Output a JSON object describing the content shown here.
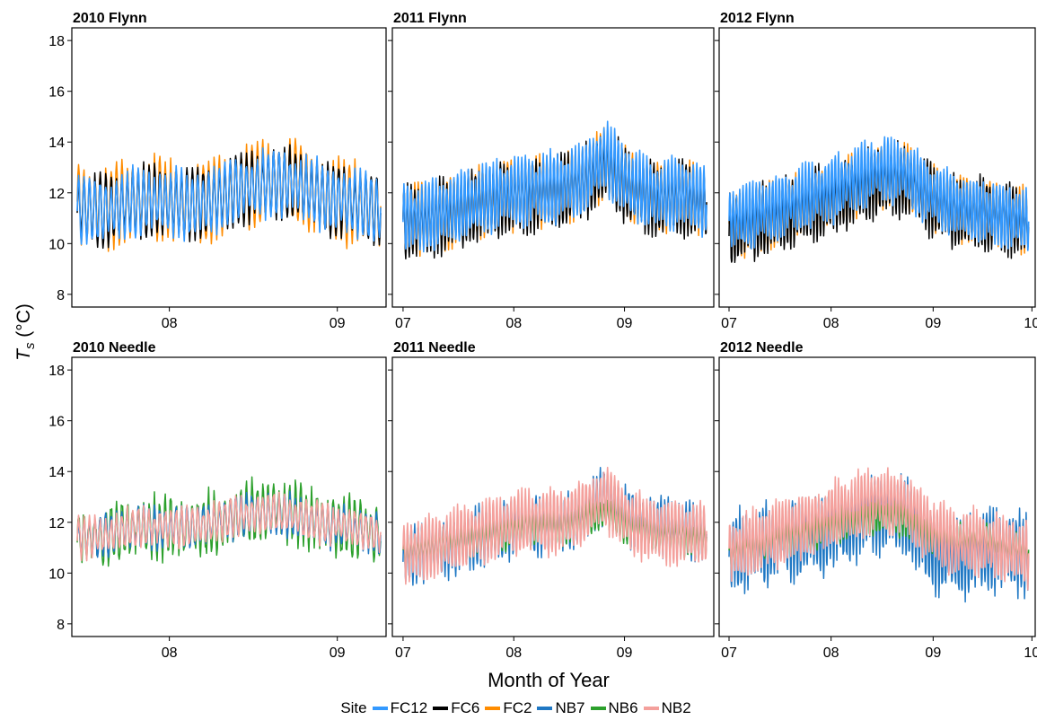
{
  "figure": {
    "y_axis_title": "T_s (°C)",
    "x_axis_title": "Month of Year"
  },
  "legend": {
    "title": "Site",
    "position": "bottom",
    "items": [
      {
        "label": "FC12",
        "color": "#3399ff"
      },
      {
        "label": "FC6",
        "color": "#000000"
      },
      {
        "label": "FC2",
        "color": "#ff8c00"
      },
      {
        "label": "NB7",
        "color": "#1f78c4"
      },
      {
        "label": "NB6",
        "color": "#2ca02c"
      },
      {
        "label": "NB2",
        "color": "#f4a09c"
      }
    ]
  },
  "chart_data": [
    {
      "type": "line",
      "title": "2010 Flynn",
      "x_type": "date",
      "xlim": [
        "2010-07-14",
        "2010-09-10"
      ],
      "x_ticks": [
        {
          "date": "2010-08-01",
          "label": "08"
        },
        {
          "date": "2010-09-01",
          "label": "09"
        }
      ],
      "ylim": [
        7.5,
        18.5
      ],
      "y_ticks": [
        8,
        10,
        12,
        14,
        16,
        18
      ],
      "grid": false,
      "series": [
        {
          "name": "FC2",
          "color": "#ff8c00",
          "width": 1.5,
          "start": "2010-07-15",
          "end": "2010-09-09",
          "trend": [
            11.5,
            11.4,
            11.7,
            11.8,
            11.5,
            11.8,
            12.2,
            12.5,
            12.4,
            11.8,
            11.6,
            11.4
          ],
          "amplitude": 1.3,
          "period_days": 1.0,
          "noise": 0.25
        },
        {
          "name": "FC6",
          "color": "#000000",
          "width": 1.5,
          "start": "2010-07-15",
          "end": "2010-09-09",
          "trend": [
            11.4,
            11.3,
            11.6,
            11.7,
            11.5,
            11.7,
            12.2,
            12.4,
            12.3,
            11.8,
            11.6,
            11.3
          ],
          "amplitude": 1.15,
          "period_days": 1.0,
          "noise": 0.2
        },
        {
          "name": "FC12",
          "color": "#3399ff",
          "width": 1.6,
          "start": "2010-07-15",
          "end": "2010-09-09",
          "trend": [
            11.4,
            11.3,
            11.6,
            11.7,
            11.5,
            11.7,
            12.2,
            12.4,
            12.3,
            11.8,
            11.6,
            11.3
          ],
          "amplitude": 1.05,
          "period_days": 1.0,
          "noise": 0.2
        }
      ]
    },
    {
      "type": "line",
      "title": "2011 Flynn",
      "x_type": "date",
      "xlim": [
        "2011-06-28",
        "2011-09-26"
      ],
      "x_ticks": [
        {
          "date": "2011-07-01",
          "label": "07"
        },
        {
          "date": "2011-08-01",
          "label": "08"
        },
        {
          "date": "2011-09-01",
          "label": "09"
        }
      ],
      "ylim": [
        7.5,
        18.5
      ],
      "y_ticks": [
        8,
        10,
        12,
        14,
        16,
        18
      ],
      "grid": false,
      "series": [
        {
          "name": "FC2",
          "color": "#ff8c00",
          "width": 1.5,
          "start": "2011-07-01",
          "end": "2011-09-24",
          "trend": [
            10.9,
            11.0,
            11.3,
            11.6,
            11.9,
            12.0,
            12.1,
            12.4,
            13.2,
            12.2,
            11.8,
            11.9,
            11.6
          ],
          "amplitude": 1.1,
          "period_days": 1.0,
          "noise": 0.2
        },
        {
          "name": "FC6",
          "color": "#000000",
          "width": 1.5,
          "start": "2011-07-01",
          "end": "2011-09-24",
          "trend": [
            10.8,
            10.9,
            11.2,
            11.5,
            11.8,
            11.9,
            12.0,
            12.3,
            13.1,
            12.1,
            11.7,
            11.8,
            11.5
          ],
          "amplitude": 1.15,
          "period_days": 1.0,
          "noise": 0.2
        },
        {
          "name": "FC12",
          "color": "#3399ff",
          "width": 1.6,
          "start": "2011-07-01",
          "end": "2011-09-24",
          "trend": [
            11.0,
            11.1,
            11.4,
            11.7,
            12.0,
            12.1,
            12.2,
            12.5,
            13.4,
            12.3,
            11.9,
            12.0,
            11.7
          ],
          "amplitude": 1.1,
          "period_days": 1.0,
          "noise": 0.2
        }
      ]
    },
    {
      "type": "line",
      "title": "2012 Flynn",
      "x_type": "date",
      "xlim": [
        "2012-06-28",
        "2012-10-02"
      ],
      "x_ticks": [
        {
          "date": "2012-07-01",
          "label": "07"
        },
        {
          "date": "2012-08-01",
          "label": "08"
        },
        {
          "date": "2012-09-01",
          "label": "09"
        },
        {
          "date": "2012-10-01",
          "label": "10"
        }
      ],
      "ylim": [
        7.5,
        18.5
      ],
      "y_ticks": [
        8,
        10,
        12,
        14,
        16,
        18
      ],
      "grid": false,
      "series": [
        {
          "name": "FC2",
          "color": "#ff8c00",
          "width": 1.5,
          "start": "2012-07-01",
          "end": "2012-09-30",
          "trend": [
            10.6,
            10.9,
            11.2,
            11.5,
            11.8,
            12.2,
            12.6,
            12.6,
            11.9,
            11.4,
            11.3,
            11.1,
            10.9
          ],
          "amplitude": 1.0,
          "period_days": 1.0,
          "noise": 0.2
        },
        {
          "name": "FC6",
          "color": "#000000",
          "width": 1.5,
          "start": "2012-07-01",
          "end": "2012-09-30",
          "trend": [
            10.5,
            10.8,
            11.1,
            11.4,
            11.7,
            12.1,
            12.5,
            12.5,
            11.8,
            11.3,
            11.2,
            11.0,
            10.8
          ],
          "amplitude": 1.1,
          "period_days": 1.0,
          "noise": 0.25
        },
        {
          "name": "FC12",
          "color": "#3399ff",
          "width": 1.6,
          "start": "2012-07-01",
          "end": "2012-09-30",
          "trend": [
            10.9,
            11.2,
            11.5,
            11.8,
            12.1,
            12.5,
            12.9,
            12.8,
            12.0,
            11.5,
            11.3,
            11.1,
            10.9
          ],
          "amplitude": 1.0,
          "period_days": 1.0,
          "noise": 0.2
        }
      ]
    },
    {
      "type": "line",
      "title": "2010 Needle",
      "x_type": "date",
      "xlim": [
        "2010-07-14",
        "2010-09-10"
      ],
      "x_ticks": [
        {
          "date": "2010-08-01",
          "label": "08"
        },
        {
          "date": "2010-09-01",
          "label": "09"
        }
      ],
      "ylim": [
        7.5,
        18.5
      ],
      "y_ticks": [
        8,
        10,
        12,
        14,
        16,
        18
      ],
      "grid": false,
      "series": [
        {
          "name": "NB6",
          "color": "#2ca02c",
          "width": 1.5,
          "start": "2010-07-15",
          "end": "2010-09-09",
          "trend": [
            11.4,
            11.5,
            11.8,
            11.8,
            11.7,
            12.0,
            12.3,
            12.5,
            12.3,
            11.9,
            11.8,
            11.5
          ],
          "amplitude": 0.9,
          "period_days": 1.0,
          "noise": 0.35
        },
        {
          "name": "NB7",
          "color": "#1f78c4",
          "width": 1.5,
          "start": "2010-07-15",
          "end": "2010-09-09",
          "trend": [
            11.4,
            11.5,
            11.8,
            11.8,
            11.8,
            12.0,
            12.3,
            12.4,
            12.2,
            11.9,
            11.8,
            11.5
          ],
          "amplitude": 0.65,
          "period_days": 1.0,
          "noise": 0.2
        },
        {
          "name": "NB2",
          "color": "#f4a09c",
          "width": 1.6,
          "start": "2010-07-15",
          "end": "2010-09-09",
          "trend": [
            11.4,
            11.5,
            11.8,
            11.8,
            11.8,
            12.0,
            12.3,
            12.4,
            12.2,
            11.9,
            11.8,
            11.5
          ],
          "amplitude": 0.6,
          "period_days": 1.0,
          "noise": 0.2
        }
      ]
    },
    {
      "type": "line",
      "title": "2011 Needle",
      "x_type": "date",
      "xlim": [
        "2011-06-28",
        "2011-09-26"
      ],
      "x_ticks": [
        {
          "date": "2011-07-01",
          "label": "07"
        },
        {
          "date": "2011-08-01",
          "label": "08"
        },
        {
          "date": "2011-09-01",
          "label": "09"
        }
      ],
      "ylim": [
        7.5,
        18.5
      ],
      "y_ticks": [
        8,
        10,
        12,
        14,
        16,
        18
      ],
      "grid": false,
      "series": [
        {
          "name": "NB7",
          "color": "#1f78c4",
          "width": 1.5,
          "start": "2011-07-01",
          "end": "2011-09-24",
          "trend": [
            10.6,
            10.9,
            11.1,
            11.4,
            11.7,
            11.9,
            11.9,
            12.2,
            13.0,
            12.1,
            11.8,
            11.7,
            11.5
          ],
          "amplitude": 0.9,
          "period_days": 1.0,
          "noise": 0.25
        },
        {
          "name": "NB6",
          "color": "#2ca02c",
          "width": 1.5,
          "start": "2011-07-01",
          "end": "2011-09-24",
          "trend": [
            10.8,
            11.0,
            11.2,
            11.4,
            11.6,
            11.8,
            11.8,
            12.0,
            12.4,
            11.8,
            11.5,
            11.4,
            11.3
          ],
          "amplitude": 0.55,
          "period_days": 1.0,
          "noise": 0.15
        },
        {
          "name": "NB2",
          "color": "#f4a09c",
          "width": 1.6,
          "start": "2011-07-01",
          "end": "2011-09-24",
          "trend": [
            10.8,
            11.0,
            11.3,
            11.6,
            11.9,
            12.1,
            12.0,
            12.3,
            13.0,
            12.0,
            11.7,
            11.6,
            11.6
          ],
          "amplitude": 1.0,
          "period_days": 1.0,
          "noise": 0.2
        }
      ]
    },
    {
      "type": "line",
      "title": "2012 Needle",
      "x_type": "date",
      "xlim": [
        "2012-06-28",
        "2012-10-02"
      ],
      "x_ticks": [
        {
          "date": "2012-07-01",
          "label": "07"
        },
        {
          "date": "2012-08-01",
          "label": "08"
        },
        {
          "date": "2012-09-01",
          "label": "09"
        },
        {
          "date": "2012-10-01",
          "label": "10"
        }
      ],
      "ylim": [
        7.5,
        18.5
      ],
      "y_ticks": [
        8,
        10,
        12,
        14,
        16,
        18
      ],
      "grid": false,
      "series": [
        {
          "name": "NB7",
          "color": "#1f78c4",
          "width": 1.5,
          "start": "2012-07-01",
          "end": "2012-09-30",
          "trend": [
            10.8,
            11.0,
            11.2,
            11.4,
            11.7,
            12.0,
            12.4,
            12.3,
            11.0,
            10.6,
            10.8,
            10.9,
            10.7
          ],
          "amplitude": 1.2,
          "period_days": 1.0,
          "noise": 0.35
        },
        {
          "name": "NB6",
          "color": "#2ca02c",
          "width": 1.5,
          "start": "2012-07-01",
          "end": "2012-09-30",
          "trend": [
            10.8,
            11.0,
            11.3,
            11.5,
            11.8,
            12.0,
            12.2,
            12.1,
            11.4,
            11.3,
            11.4,
            11.1,
            10.9
          ],
          "amplitude": 0.5,
          "period_days": 1.0,
          "noise": 0.15
        },
        {
          "name": "NB2",
          "color": "#f4a09c",
          "width": 1.6,
          "start": "2012-07-01",
          "end": "2012-09-30",
          "trend": [
            10.9,
            11.2,
            11.6,
            11.9,
            12.2,
            12.6,
            12.9,
            12.7,
            11.8,
            11.2,
            11.2,
            11.0,
            10.8
          ],
          "amplitude": 1.0,
          "period_days": 1.0,
          "noise": 0.25
        }
      ]
    }
  ]
}
